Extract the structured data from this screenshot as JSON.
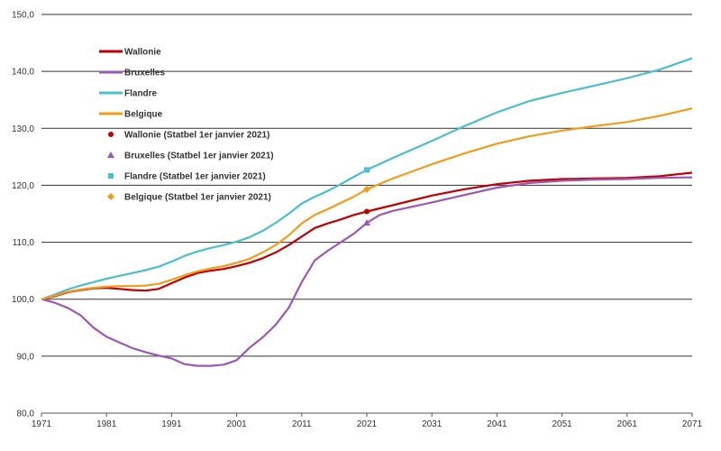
{
  "chart_data": {
    "type": "line",
    "grid": true,
    "legend_position": "top-left",
    "xlim": [
      1971,
      2071
    ],
    "ylim": [
      80,
      150
    ],
    "x_ticks": [
      "1971",
      "1981",
      "1991",
      "2001",
      "2011",
      "2021",
      "2031",
      "2041",
      "2051",
      "2061",
      "2071"
    ],
    "y_ticks": [
      "80,0",
      "90,0",
      "100,0",
      "110,0",
      "120,0",
      "130,0",
      "140,0",
      "150,0"
    ],
    "series": [
      {
        "name": "Wallonie",
        "color": "#c00000",
        "points": [
          [
            1971,
            100
          ],
          [
            1973,
            100.5
          ],
          [
            1975,
            101.2
          ],
          [
            1977,
            101.6
          ],
          [
            1979,
            101.9
          ],
          [
            1981,
            102.0
          ],
          [
            1983,
            101.8
          ],
          [
            1985,
            101.6
          ],
          [
            1987,
            101.5
          ],
          [
            1989,
            101.8
          ],
          [
            1991,
            102.8
          ],
          [
            1993,
            103.8
          ],
          [
            1995,
            104.6
          ],
          [
            1997,
            105.0
          ],
          [
            1999,
            105.3
          ],
          [
            2001,
            105.8
          ],
          [
            2003,
            106.4
          ],
          [
            2005,
            107.2
          ],
          [
            2007,
            108.2
          ],
          [
            2009,
            109.5
          ],
          [
            2011,
            111.0
          ],
          [
            2013,
            112.5
          ],
          [
            2015,
            113.3
          ],
          [
            2017,
            114.0
          ],
          [
            2019,
            114.8
          ],
          [
            2021,
            115.4
          ],
          [
            2025,
            116.5
          ],
          [
            2031,
            118.2
          ],
          [
            2036,
            119.3
          ],
          [
            2041,
            120.2
          ],
          [
            2046,
            120.8
          ],
          [
            2051,
            121.1
          ],
          [
            2056,
            121.2
          ],
          [
            2061,
            121.3
          ],
          [
            2066,
            121.6
          ],
          [
            2071,
            122.2
          ]
        ]
      },
      {
        "name": "Bruxelles",
        "color": "#9b59b6",
        "points": [
          [
            1971,
            100
          ],
          [
            1973,
            99.4
          ],
          [
            1975,
            98.5
          ],
          [
            1977,
            97.2
          ],
          [
            1979,
            95.0
          ],
          [
            1981,
            93.4
          ],
          [
            1983,
            92.4
          ],
          [
            1985,
            91.4
          ],
          [
            1987,
            90.7
          ],
          [
            1989,
            90.1
          ],
          [
            1991,
            89.6
          ],
          [
            1993,
            88.6
          ],
          [
            1995,
            88.3
          ],
          [
            1997,
            88.3
          ],
          [
            1999,
            88.5
          ],
          [
            2001,
            89.3
          ],
          [
            2003,
            91.5
          ],
          [
            2005,
            93.3
          ],
          [
            2007,
            95.5
          ],
          [
            2009,
            98.5
          ],
          [
            2011,
            103.0
          ],
          [
            2013,
            106.8
          ],
          [
            2015,
            108.5
          ],
          [
            2017,
            110.0
          ],
          [
            2019,
            111.5
          ],
          [
            2021,
            113.4
          ],
          [
            2023,
            114.8
          ],
          [
            2025,
            115.5
          ],
          [
            2031,
            117.0
          ],
          [
            2036,
            118.3
          ],
          [
            2041,
            119.6
          ],
          [
            2046,
            120.4
          ],
          [
            2051,
            120.8
          ],
          [
            2056,
            121.0
          ],
          [
            2061,
            121.1
          ],
          [
            2066,
            121.3
          ],
          [
            2071,
            121.4
          ]
        ]
      },
      {
        "name": "Flandre",
        "color": "#4bbfcf",
        "points": [
          [
            1971,
            100
          ],
          [
            1973,
            100.8
          ],
          [
            1975,
            101.7
          ],
          [
            1977,
            102.4
          ],
          [
            1979,
            103.0
          ],
          [
            1981,
            103.6
          ],
          [
            1983,
            104.1
          ],
          [
            1985,
            104.6
          ],
          [
            1987,
            105.1
          ],
          [
            1989,
            105.7
          ],
          [
            1991,
            106.6
          ],
          [
            1993,
            107.6
          ],
          [
            1995,
            108.4
          ],
          [
            1997,
            109.0
          ],
          [
            1999,
            109.5
          ],
          [
            2001,
            110.1
          ],
          [
            2003,
            110.9
          ],
          [
            2005,
            112.0
          ],
          [
            2007,
            113.4
          ],
          [
            2009,
            115.0
          ],
          [
            2011,
            116.8
          ],
          [
            2013,
            118.0
          ],
          [
            2015,
            119.0
          ],
          [
            2017,
            120.2
          ],
          [
            2019,
            121.5
          ],
          [
            2021,
            122.7
          ],
          [
            2025,
            124.8
          ],
          [
            2031,
            127.8
          ],
          [
            2036,
            130.4
          ],
          [
            2041,
            132.8
          ],
          [
            2046,
            134.8
          ],
          [
            2051,
            136.2
          ],
          [
            2056,
            137.5
          ],
          [
            2061,
            138.8
          ],
          [
            2066,
            140.3
          ],
          [
            2071,
            142.3
          ]
        ]
      },
      {
        "name": "Belgique",
        "color": "#f29d1a",
        "points": [
          [
            1971,
            100
          ],
          [
            1973,
            100.6
          ],
          [
            1975,
            101.3
          ],
          [
            1977,
            101.7
          ],
          [
            1979,
            102.0
          ],
          [
            1981,
            102.2
          ],
          [
            1983,
            102.3
          ],
          [
            1985,
            102.3
          ],
          [
            1987,
            102.4
          ],
          [
            1989,
            102.7
          ],
          [
            1991,
            103.4
          ],
          [
            1993,
            104.2
          ],
          [
            1995,
            104.9
          ],
          [
            1997,
            105.4
          ],
          [
            1999,
            105.8
          ],
          [
            2001,
            106.4
          ],
          [
            2003,
            107.1
          ],
          [
            2005,
            108.2
          ],
          [
            2007,
            109.5
          ],
          [
            2009,
            111.2
          ],
          [
            2011,
            113.3
          ],
          [
            2013,
            114.8
          ],
          [
            2015,
            115.8
          ],
          [
            2017,
            116.9
          ],
          [
            2019,
            118.0
          ],
          [
            2021,
            119.3
          ],
          [
            2025,
            121.2
          ],
          [
            2031,
            123.7
          ],
          [
            2036,
            125.6
          ],
          [
            2041,
            127.3
          ],
          [
            2046,
            128.6
          ],
          [
            2051,
            129.6
          ],
          [
            2056,
            130.4
          ],
          [
            2061,
            131.1
          ],
          [
            2066,
            132.2
          ],
          [
            2071,
            133.5
          ]
        ]
      }
    ],
    "markers": [
      {
        "name": "Wallonie (Statbel 1er janvier 2021)",
        "shape": "circle",
        "color": "#c00000",
        "x": 2021,
        "y": 115.4
      },
      {
        "name": "Bruxelles (Statbel 1er janvier 2021)",
        "shape": "triangle",
        "color": "#9b59b6",
        "x": 2021,
        "y": 113.4
      },
      {
        "name": "Flandre (Statbel 1er janvier 2021)",
        "shape": "square",
        "color": "#4bbfcf",
        "x": 2021,
        "y": 122.7
      },
      {
        "name": "Belgique (Statbel 1er janvier 2021)",
        "shape": "diamond",
        "color": "#f29d1a",
        "x": 2021,
        "y": 119.3
      }
    ],
    "legend": [
      {
        "label": "Wallonie",
        "kind": "line",
        "color": "#c00000"
      },
      {
        "label": "Bruxelles",
        "kind": "line",
        "color": "#9b59b6"
      },
      {
        "label": "Flandre",
        "kind": "line",
        "color": "#4bbfcf"
      },
      {
        "label": "Belgique",
        "kind": "line",
        "color": "#f29d1a"
      },
      {
        "label": "Wallonie (Statbel 1er janvier 2021)",
        "kind": "circle",
        "color": "#c00000"
      },
      {
        "label": "Bruxelles (Statbel 1er janvier 2021)",
        "kind": "triangle",
        "color": "#9b59b6"
      },
      {
        "label": "Flandre (Statbel 1er janvier 2021)",
        "kind": "square",
        "color": "#4bbfcf"
      },
      {
        "label": "Belgique (Statbel 1er janvier 2021)",
        "kind": "diamond",
        "color": "#f29d1a"
      }
    ]
  }
}
